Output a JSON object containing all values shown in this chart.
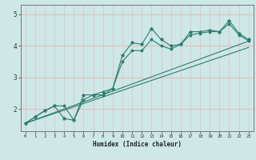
{
  "xlabel": "Humidex (Indice chaleur)",
  "ylabel": "",
  "background_color": "#cde8e6",
  "line_color": "#2d7d72",
  "xlim": [
    -0.5,
    23.5
  ],
  "ylim": [
    1.3,
    5.3
  ],
  "xticks": [
    0,
    1,
    2,
    3,
    4,
    5,
    6,
    7,
    8,
    9,
    10,
    11,
    12,
    13,
    14,
    15,
    16,
    17,
    18,
    19,
    20,
    21,
    22,
    23
  ],
  "yticks": [
    2,
    3,
    4,
    5
  ],
  "series1_x": [
    0,
    1,
    2,
    3,
    4,
    5,
    6,
    7,
    8,
    9,
    10,
    11,
    12,
    13,
    14,
    15,
    16,
    17,
    18,
    19,
    20,
    21,
    22,
    23
  ],
  "series1_y": [
    1.55,
    1.75,
    1.95,
    2.1,
    1.7,
    1.65,
    2.45,
    2.45,
    2.45,
    2.65,
    3.7,
    4.1,
    4.05,
    4.55,
    4.2,
    4.0,
    4.05,
    4.45,
    4.45,
    4.5,
    4.45,
    4.8,
    4.4,
    4.2
  ],
  "series2_x": [
    0,
    1,
    2,
    3,
    4,
    5,
    6,
    7,
    8,
    9,
    10,
    11,
    12,
    13,
    14,
    15,
    16,
    17,
    18,
    19,
    20,
    21,
    22,
    23
  ],
  "series2_y": [
    1.55,
    1.75,
    1.95,
    2.1,
    2.1,
    1.65,
    2.3,
    2.45,
    2.55,
    2.65,
    3.5,
    3.85,
    3.85,
    4.2,
    4.0,
    3.9,
    4.05,
    4.35,
    4.4,
    4.45,
    4.45,
    4.7,
    4.35,
    4.15
  ],
  "series3_x": [
    0,
    23
  ],
  "series3_y": [
    1.55,
    4.15
  ],
  "series4_x": [
    0,
    23
  ],
  "series4_y": [
    1.55,
    3.95
  ],
  "vgrid_color": "#e0c0c0",
  "hgrid_color": "#e0c0c0"
}
